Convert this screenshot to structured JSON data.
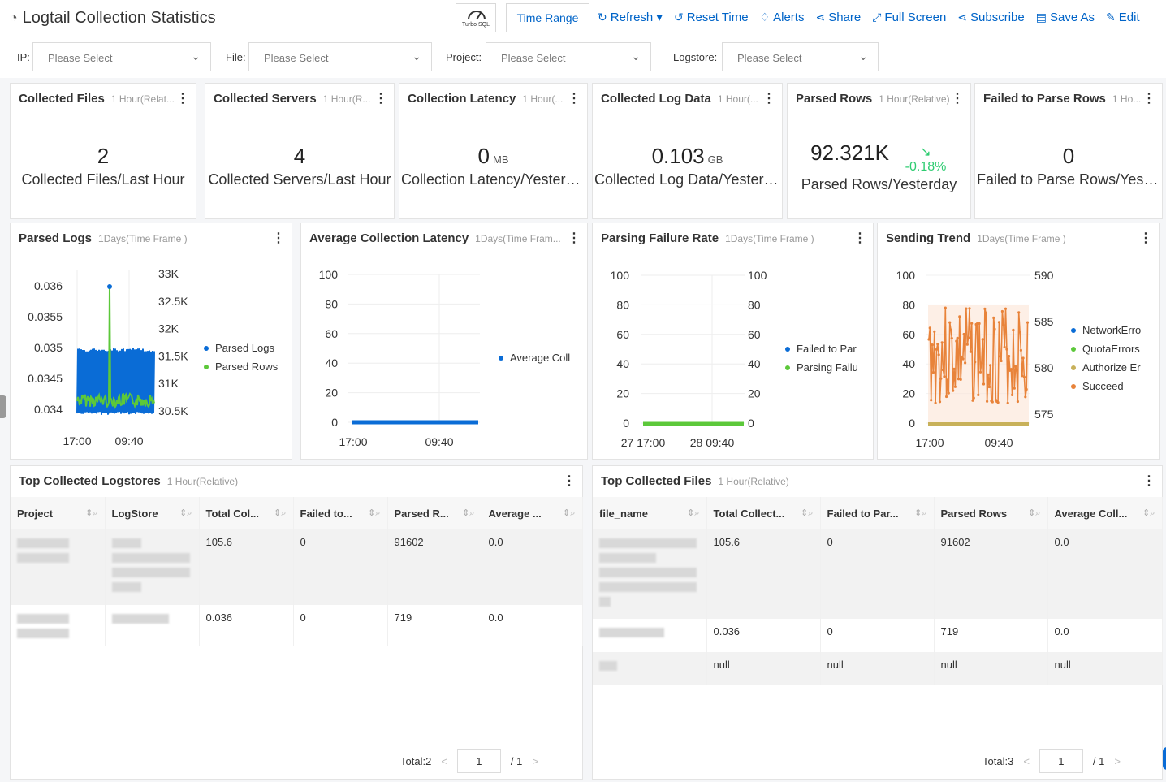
{
  "header": {
    "title": "Logtail Collection Statistics",
    "turbo_label": "Turbo SQL",
    "time_range": "Time Range",
    "tools": [
      {
        "icon": "refresh-icon",
        "glyph": "↻",
        "label": "Refresh ▾"
      },
      {
        "icon": "reset-time-icon",
        "glyph": "↺",
        "label": "Reset Time"
      },
      {
        "icon": "alert-bell-icon",
        "glyph": "🔔︎",
        "label": "Alerts"
      },
      {
        "icon": "share-icon",
        "glyph": "⋖",
        "label": "Share"
      },
      {
        "icon": "fullscreen-icon",
        "glyph": "⤢",
        "label": "Full Screen"
      },
      {
        "icon": "subscribe-icon",
        "glyph": "⋖",
        "label": "Subscribe"
      },
      {
        "icon": "save-as-icon",
        "glyph": "▤",
        "label": "Save As"
      },
      {
        "icon": "edit-icon",
        "glyph": "✎",
        "label": "Edit"
      }
    ]
  },
  "filters": [
    {
      "label": "IP:",
      "placeholder": "Please Select"
    },
    {
      "label": "File:",
      "placeholder": "Please Select"
    },
    {
      "label": "Project:",
      "placeholder": "Please Select"
    },
    {
      "label": "Logstore:",
      "placeholder": "Please Select"
    }
  ],
  "stats": [
    {
      "title": "Collected Files",
      "sub": "1 Hour(Relat...",
      "value": "2",
      "unit": "",
      "caption": "Collected Files/Last Hour"
    },
    {
      "title": "Collected Servers",
      "sub": "1 Hour(R...",
      "value": "4",
      "unit": "",
      "caption": "Collected Servers/Last Hour"
    },
    {
      "title": "Collection Latency",
      "sub": "1 Hour(...",
      "value": "0",
      "unit": "MB",
      "caption": "Collection Latency/Yesterday"
    },
    {
      "title": "Collected Log Data",
      "sub": "1 Hour(...",
      "value": "0.103",
      "unit": "GB",
      "caption": "Collected Log Data/Yesterd..."
    },
    {
      "title": "Parsed Rows",
      "sub": "1 Hour(Relative)",
      "value": "92.321K",
      "unit": "",
      "caption": "Parsed Rows/Yesterday",
      "trend": "-0.18%"
    },
    {
      "title": "Failed to Parse Rows",
      "sub": "1 Ho...",
      "value": "0",
      "unit": "",
      "caption": "Failed to Parse Rows/Yester..."
    }
  ],
  "charts": [
    {
      "title": "Parsed Logs",
      "sub": "1Days(Time Frame )",
      "chart_data": {
        "type": "line",
        "x_ticks": [
          "17:00",
          "09:40"
        ],
        "y_left_ticks": [
          "0.036",
          "0.0355",
          "0.035",
          "0.0345",
          "0.034"
        ],
        "y_right_ticks": [
          "33K",
          "32.5K",
          "32K",
          "31.5K",
          "31K",
          "30.5K"
        ],
        "series": [
          {
            "name": "Parsed Logs",
            "color": "#0a6cd6"
          },
          {
            "name": "Parsed Rows",
            "color": "#5cc83a"
          }
        ]
      }
    },
    {
      "title": "Average Collection Latency",
      "sub": "1Days(Time Fram...",
      "chart_data": {
        "type": "line",
        "x_ticks": [
          "17:00",
          "09:40"
        ],
        "y_left_ticks": [
          "100",
          "80",
          "60",
          "40",
          "20",
          "0"
        ],
        "series": [
          {
            "name": "Average Coll",
            "color": "#0a6cd6",
            "values": [
              0,
              0
            ]
          }
        ]
      }
    },
    {
      "title": "Parsing Failure Rate",
      "sub": "1Days(Time Frame )",
      "chart_data": {
        "type": "line",
        "x_ticks": [
          "27 17:00",
          "28 09:40"
        ],
        "y_left_ticks": [
          "100",
          "80",
          "60",
          "40",
          "20",
          "0"
        ],
        "y_right_ticks": [
          "100",
          "80",
          "60",
          "40",
          "20",
          "0"
        ],
        "series": [
          {
            "name": "Failed to Par",
            "color": "#0a6cd6",
            "values": [
              0,
              0
            ]
          },
          {
            "name": "Parsing Failu",
            "color": "#5cc83a",
            "values": [
              0,
              0
            ]
          }
        ]
      }
    },
    {
      "title": "Sending Trend",
      "sub": "1Days(Time Frame )",
      "chart_data": {
        "type": "line",
        "x_ticks": [
          "17:00",
          "09:40"
        ],
        "y_left_ticks": [
          "100",
          "80",
          "60",
          "40",
          "20",
          "0"
        ],
        "y_right_ticks": [
          "590",
          "585",
          "580",
          "575"
        ],
        "series": [
          {
            "name": "NetworkErro",
            "color": "#0a6cd6"
          },
          {
            "name": "QuotaErrors",
            "color": "#5cc83a"
          },
          {
            "name": "Authorize Er",
            "color": "#c8b15a"
          },
          {
            "name": "Succeed",
            "color": "#e8833a"
          }
        ]
      }
    }
  ],
  "tables": [
    {
      "title": "Top Collected Logstores",
      "sub": "1 Hour(Relative)",
      "columns": [
        "Project",
        "LogStore",
        "Total Col...",
        "Failed to...",
        "Parsed R...",
        "Average ..."
      ],
      "rows": [
        [
          "",
          "",
          "105.6",
          "0",
          "91602",
          "0.0"
        ],
        [
          "",
          "",
          "0.036",
          "0",
          "719",
          "0.0"
        ]
      ],
      "total": "Total:2",
      "page": "1",
      "pages": "/ 1"
    },
    {
      "title": "Top Collected Files",
      "sub": "1 Hour(Relative)",
      "columns": [
        "file_name",
        "Total Collect...",
        "Failed to Par...",
        "Parsed Rows",
        "Average Coll..."
      ],
      "rows": [
        [
          "",
          "105.6",
          "0",
          "91602",
          "0.0"
        ],
        [
          "",
          "0.036",
          "0",
          "719",
          "0.0"
        ],
        [
          "",
          "null",
          "null",
          "null",
          "null"
        ]
      ],
      "total": "Total:3",
      "page": "1",
      "pages": "/ 1"
    }
  ]
}
